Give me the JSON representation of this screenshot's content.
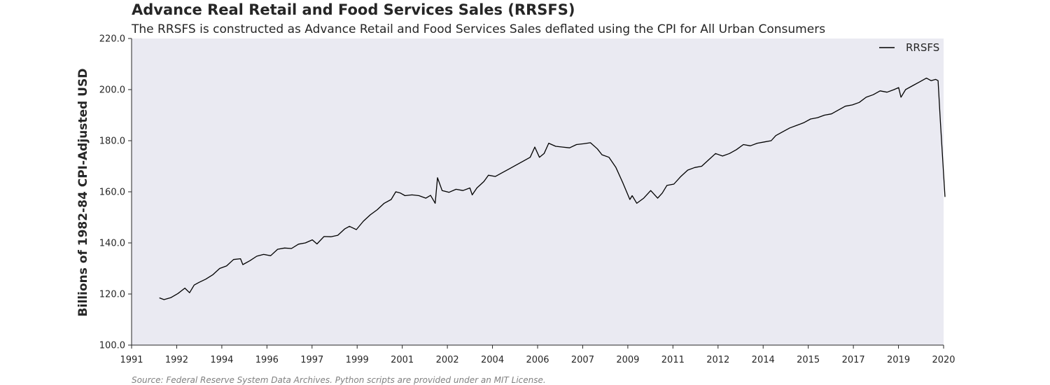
{
  "chart_data": {
    "type": "line",
    "title": "Advance Real Retail and Food Services Sales (RRSFS)",
    "subtitle": "The RRSFS is constructed as Advance Retail and Food Services Sales deflated using the CPI for All Urban Consumers",
    "ylabel": "Billions of 1982-84 CPI-Adjusted USD",
    "xlabel": "",
    "source": "Source: Federal Reserve System Data Archives. Python scripts are provided under an MIT License.",
    "ylim": [
      100.0,
      220.0
    ],
    "y_ticks": [
      "100.0",
      "120.0",
      "140.0",
      "160.0",
      "180.0",
      "200.0",
      "220.0"
    ],
    "x_ticks": [
      "1991",
      "1992",
      "1994",
      "1996",
      "1997",
      "1999",
      "2001",
      "2002",
      "2004",
      "2006",
      "2007",
      "2009",
      "2011",
      "2012",
      "2014",
      "2015",
      "2017",
      "2019",
      "2020"
    ],
    "grid": false,
    "background": "#eaeaf2",
    "legend_position": "top-right",
    "series": [
      {
        "name": "RRSFS",
        "color": "#000000",
        "points": [
          [
            "1992-01",
            118.5
          ],
          [
            "1992-03",
            117.8
          ],
          [
            "1992-06",
            118.6
          ],
          [
            "1992-09",
            120.2
          ],
          [
            "1992-12",
            122.3
          ],
          [
            "1993-02",
            120.5
          ],
          [
            "1993-04",
            123.5
          ],
          [
            "1993-06",
            124.5
          ],
          [
            "1993-09",
            125.8
          ],
          [
            "1993-12",
            127.5
          ],
          [
            "1994-03",
            130.0
          ],
          [
            "1994-06",
            131.0
          ],
          [
            "1994-09",
            133.5
          ],
          [
            "1994-12",
            133.8
          ],
          [
            "1995-01",
            131.5
          ],
          [
            "1995-04",
            133.0
          ],
          [
            "1995-07",
            134.8
          ],
          [
            "1995-10",
            135.5
          ],
          [
            "1996-01",
            135.0
          ],
          [
            "1996-04",
            137.5
          ],
          [
            "1996-07",
            138.0
          ],
          [
            "1996-10",
            137.8
          ],
          [
            "1997-01",
            139.5
          ],
          [
            "1997-04",
            140.0
          ],
          [
            "1997-07",
            141.2
          ],
          [
            "1997-09",
            139.6
          ],
          [
            "1997-12",
            142.5
          ],
          [
            "1998-03",
            142.4
          ],
          [
            "1998-06",
            143.0
          ],
          [
            "1998-09",
            145.5
          ],
          [
            "1998-11",
            146.5
          ],
          [
            "1999-02",
            145.2
          ],
          [
            "1999-05",
            148.5
          ],
          [
            "1999-08",
            151.0
          ],
          [
            "1999-11",
            153.0
          ],
          [
            "2000-02",
            155.5
          ],
          [
            "2000-05",
            157.0
          ],
          [
            "2000-07",
            160.0
          ],
          [
            "2000-09",
            159.5
          ],
          [
            "2000-11",
            158.5
          ],
          [
            "2001-02",
            158.8
          ],
          [
            "2001-05",
            158.5
          ],
          [
            "2001-08",
            157.5
          ],
          [
            "2001-10",
            158.6
          ],
          [
            "2001-12",
            155.5
          ],
          [
            "2002-01",
            165.5
          ],
          [
            "2002-03",
            160.5
          ],
          [
            "2002-06",
            159.8
          ],
          [
            "2002-09",
            161.0
          ],
          [
            "2002-12",
            160.5
          ],
          [
            "2003-03",
            161.5
          ],
          [
            "2003-04",
            158.8
          ],
          [
            "2003-06",
            161.5
          ],
          [
            "2003-09",
            164.0
          ],
          [
            "2003-11",
            166.5
          ],
          [
            "2004-02",
            166.0
          ],
          [
            "2004-05",
            167.5
          ],
          [
            "2004-08",
            169.0
          ],
          [
            "2004-11",
            170.5
          ],
          [
            "2005-02",
            172.0
          ],
          [
            "2005-05",
            173.5
          ],
          [
            "2005-07",
            177.5
          ],
          [
            "2005-09",
            173.5
          ],
          [
            "2005-11",
            175.0
          ],
          [
            "2006-01",
            179.0
          ],
          [
            "2006-04",
            177.8
          ],
          [
            "2006-07",
            177.5
          ],
          [
            "2006-10",
            177.2
          ],
          [
            "2007-01",
            178.5
          ],
          [
            "2007-04",
            178.8
          ],
          [
            "2007-07",
            179.2
          ],
          [
            "2007-10",
            176.8
          ],
          [
            "2007-12",
            174.5
          ],
          [
            "2008-03",
            173.5
          ],
          [
            "2008-06",
            169.5
          ],
          [
            "2008-09",
            163.5
          ],
          [
            "2008-12",
            157.0
          ],
          [
            "2009-01",
            158.5
          ],
          [
            "2009-03",
            155.5
          ],
          [
            "2009-06",
            157.5
          ],
          [
            "2009-09",
            160.5
          ],
          [
            "2009-12",
            157.5
          ],
          [
            "2010-02",
            159.5
          ],
          [
            "2010-04",
            162.5
          ],
          [
            "2010-07",
            163.0
          ],
          [
            "2010-10",
            166.0
          ],
          [
            "2011-01",
            168.5
          ],
          [
            "2011-04",
            169.5
          ],
          [
            "2011-07",
            170.0
          ],
          [
            "2011-10",
            172.5
          ],
          [
            "2012-01",
            175.0
          ],
          [
            "2012-04",
            174.0
          ],
          [
            "2012-07",
            175.0
          ],
          [
            "2012-10",
            176.5
          ],
          [
            "2013-01",
            178.5
          ],
          [
            "2013-04",
            178.0
          ],
          [
            "2013-07",
            179.0
          ],
          [
            "2013-10",
            179.5
          ],
          [
            "2014-01",
            180.0
          ],
          [
            "2014-03",
            182.0
          ],
          [
            "2014-06",
            183.5
          ],
          [
            "2014-09",
            185.0
          ],
          [
            "2014-12",
            186.0
          ],
          [
            "2015-03",
            187.0
          ],
          [
            "2015-06",
            188.5
          ],
          [
            "2015-09",
            189.0
          ],
          [
            "2015-12",
            190.0
          ],
          [
            "2016-03",
            190.5
          ],
          [
            "2016-06",
            192.0
          ],
          [
            "2016-09",
            193.5
          ],
          [
            "2016-12",
            194.0
          ],
          [
            "2017-03",
            195.0
          ],
          [
            "2017-06",
            197.0
          ],
          [
            "2017-09",
            198.0
          ],
          [
            "2017-12",
            199.5
          ],
          [
            "2018-03",
            199.0
          ],
          [
            "2018-06",
            200.0
          ],
          [
            "2018-08",
            200.8
          ],
          [
            "2018-09",
            197.0
          ],
          [
            "2018-11",
            200.0
          ],
          [
            "2019-02",
            201.5
          ],
          [
            "2019-05",
            203.0
          ],
          [
            "2019-08",
            204.5
          ],
          [
            "2019-10",
            203.5
          ],
          [
            "2019-12",
            204.0
          ],
          [
            "2020-01",
            203.5
          ],
          [
            "2020-02",
            187.5
          ],
          [
            "2020-04",
            158.0
          ]
        ]
      }
    ]
  }
}
